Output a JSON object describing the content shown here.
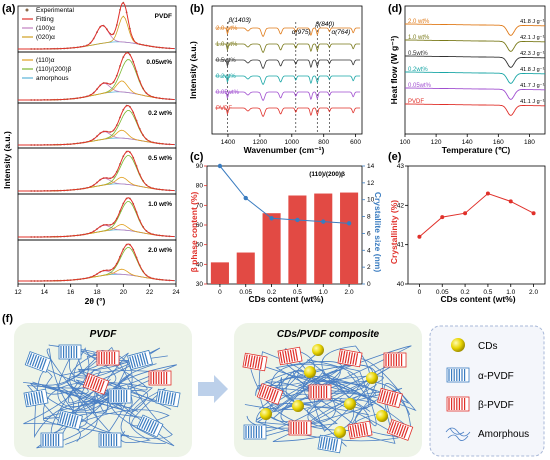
{
  "panels": {
    "a": "(a)",
    "b": "(b)",
    "c": "(c)",
    "d": "(d)",
    "e": "(e)",
    "f": "(f)"
  },
  "panel_a": {
    "legend_top": [
      "Experimental",
      "Fitting",
      "(100)α",
      "(020)α"
    ],
    "legend_mid": [
      "(110)α",
      "(110)/(200)β",
      "amorphous"
    ],
    "labels": [
      "PVDF",
      "0.05wt%",
      "0.2 wt%",
      "0.5 wt%",
      "1.0 wt%",
      "2.0 wt%"
    ],
    "xlabel": "2θ (°)",
    "ylabel": "Intensity (a.u.)",
    "xticks": [
      "12",
      "14",
      "16",
      "18",
      "20",
      "22",
      "24"
    ]
  },
  "panel_b": {
    "xlabel": "Wavenumber (cm⁻¹)",
    "ylabel": "Intensity (a.u.)",
    "xticks": [
      "1400",
      "1200",
      "1000",
      "800",
      "600"
    ],
    "peaks": [
      "β(1403)",
      "α(975)",
      "β(840)",
      "α(764)"
    ],
    "series": [
      "2.0 wt%",
      "1.0 wt%",
      "0.5wt%",
      "0.2wt%",
      "0.05wt%",
      "PVDF"
    ],
    "colors": [
      "#e07b1a",
      "#7a7a1a",
      "#333333",
      "#1aa6a6",
      "#a04fd0",
      "#e0302a"
    ]
  },
  "chart_data": [
    {
      "type": "bar",
      "panel": "c",
      "categories": [
        "0",
        "0.05",
        "0.2",
        "0.5",
        "1.0",
        "2.0"
      ],
      "values": [
        41,
        46,
        66,
        75,
        76,
        76.5
      ],
      "ylabel": "β phase content (%)",
      "ylim": [
        30,
        90
      ],
      "yticks": [
        "30",
        "40",
        "50",
        "60",
        "70",
        "80",
        "90"
      ],
      "y2": [
        14,
        10.2,
        7.8,
        7.6,
        7.4,
        7.2
      ],
      "y2label": "Crystallite size (nm)",
      "y2lim": [
        0,
        14
      ],
      "y2ticks": [
        "0",
        "2",
        "4",
        "6",
        "8",
        "10",
        "12",
        "14"
      ],
      "xlabel": "CDs content (wt%)",
      "annotation": "(110)/(200)β"
    },
    {
      "type": "line",
      "panel": "e",
      "x": [
        "0",
        "0.05",
        "0.2",
        "0.5",
        "1.0",
        "2.0"
      ],
      "values": [
        41.2,
        41.7,
        41.8,
        42.3,
        42.1,
        41.8
      ],
      "ylabel": "Crystallinity (%)",
      "ylim": [
        40,
        43
      ],
      "yticks": [
        "40",
        "41",
        "42",
        "43"
      ],
      "xlabel": "CDs content (wt%)"
    }
  ],
  "panel_d": {
    "xlabel": "Temperature (℃)",
    "ylabel": "Heat flow (W g⁻¹)",
    "xticks": [
      "100",
      "120",
      "140",
      "160",
      "180"
    ],
    "series": [
      "2.0 wt%",
      "1.0 wt%",
      "0.5wt%",
      "0.2wt%",
      "0.05wt%",
      "PVDF"
    ],
    "enthalpy": [
      "41.8 J g⁻¹",
      "42.1 J g⁻¹",
      "42.3 J g⁻¹",
      "41.8 J g⁻¹",
      "41.7 J g⁻¹",
      "41.1 J g⁻¹"
    ],
    "colors": [
      "#e07b1a",
      "#7a7a1a",
      "#333333",
      "#1aa6a6",
      "#a04fd0",
      "#e0302a"
    ]
  },
  "panel_f": {
    "left_title": "PVDF",
    "right_title": "CDs/PVDF composite",
    "legend": [
      "CDs",
      "α-PVDF",
      "β-PVDF",
      "Amorphous"
    ]
  }
}
